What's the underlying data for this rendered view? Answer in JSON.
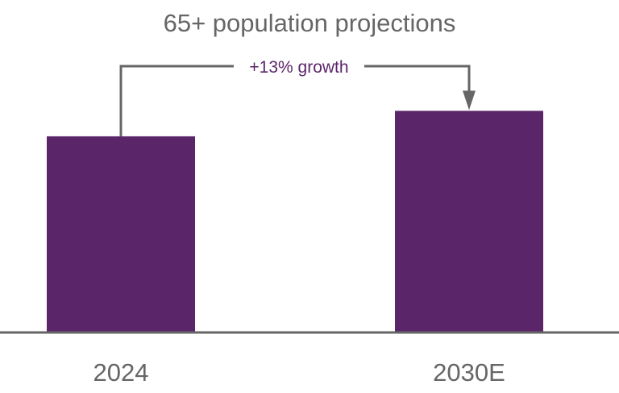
{
  "chart_data": {
    "type": "bar",
    "title": "65+ population projections",
    "xlabel": "",
    "ylabel": "",
    "categories": [
      "2024",
      "2030E"
    ],
    "values": [
      100,
      113
    ],
    "ylim": [
      0,
      130
    ],
    "grid": false,
    "legend": "none",
    "bar_color": "#5b2669",
    "annotation": {
      "text": "+13% growth",
      "from": "2024",
      "to": "2030E",
      "color": "#5b2669",
      "line_color": "#666666"
    }
  }
}
